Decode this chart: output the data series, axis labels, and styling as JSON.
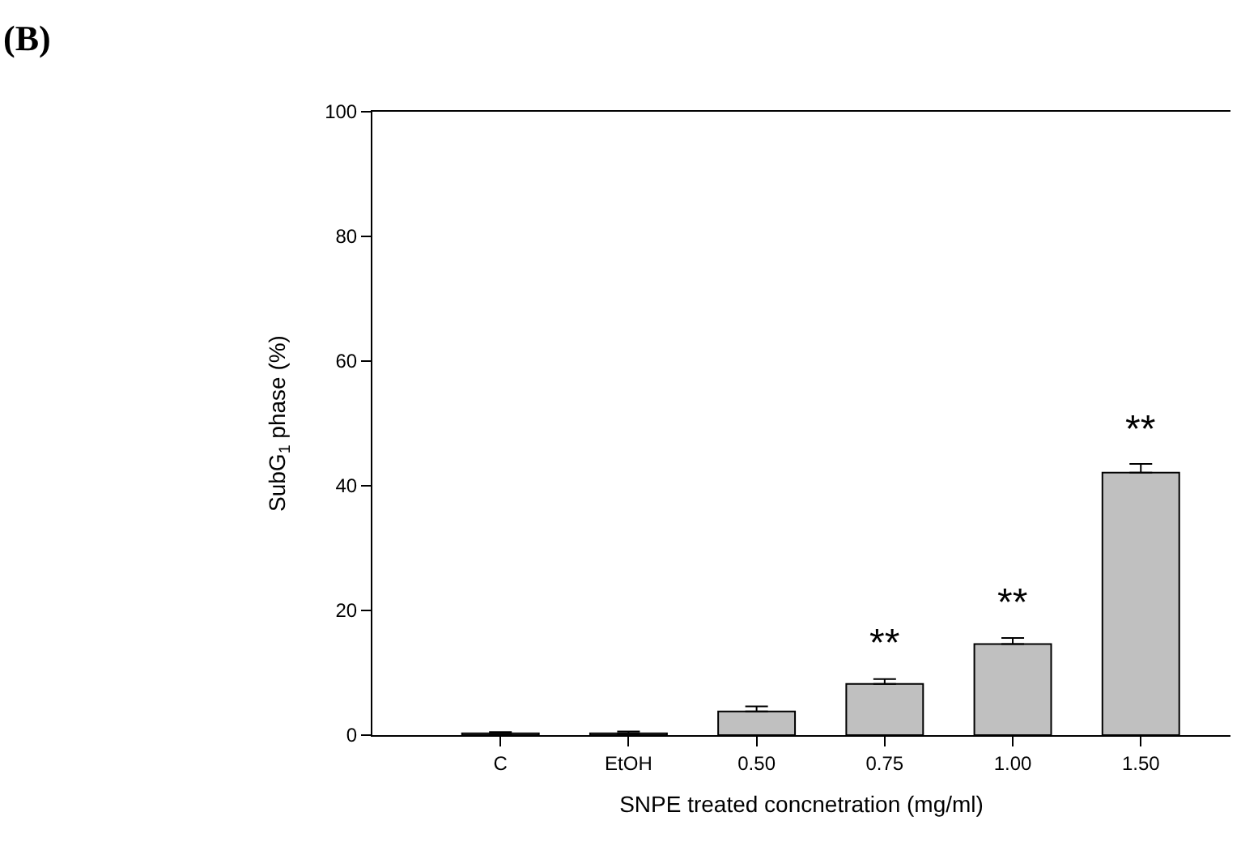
{
  "chart_data": {
    "type": "bar",
    "xlabel": "SNPE treated concnetration (mg/ml)",
    "ylabel": "SubG$_{1}$ phase (%)",
    "categories": [
      "C",
      "EtOH",
      "0.50",
      "0.75",
      "1.00",
      "1.50"
    ],
    "values": [
      0.3,
      0.3,
      3.8,
      8.2,
      14.6,
      42.1
    ],
    "errors": [
      [
        0.3,
        0.5
      ],
      [
        0.3,
        0.6
      ],
      [
        3.8,
        4.6
      ],
      [
        8.2,
        9.0
      ],
      [
        14.6,
        15.6
      ],
      [
        42.1,
        43.5
      ]
    ],
    "color": "#c0c0c0",
    "ylim": [
      0,
      100
    ],
    "yticks": [
      0,
      20,
      40,
      60,
      80,
      100
    ],
    "annotations": [
      "(B)",
      {
        "text": "**",
        "x": "0.75",
        "y": 8.2
      },
      {
        "text": "**",
        "x": "1.00",
        "y": 14.6
      },
      {
        "text": "**",
        "x": "1.50",
        "y": 42.1
      }
    ]
  }
}
